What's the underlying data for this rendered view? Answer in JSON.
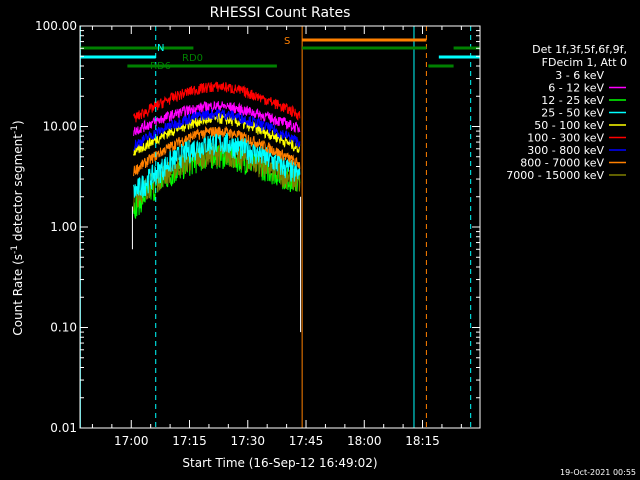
{
  "chart_data": {
    "type": "line",
    "title": "RHESSI Count Rates",
    "xlabel": "Start Time (16-Sep-12 16:49:02)",
    "ylabel_main": "Count Rate (s",
    "ylabel_sup": "-1",
    "ylabel_tail": " detector segment",
    "ylabel_sup2": "-1",
    "ylabel_close": ")",
    "y_scale": "log",
    "ylim": [
      0.01,
      100
    ],
    "xlim_minutes": [
      16.8,
      119.8
    ],
    "y_ticks": [
      {
        "value": 0.01,
        "label": "0.01"
      },
      {
        "value": 0.1,
        "label": "0.10"
      },
      {
        "value": 1,
        "label": "1.00"
      },
      {
        "value": 10,
        "label": "10.00"
      },
      {
        "value": 100,
        "label": "100.00"
      }
    ],
    "x_ticks": [
      {
        "minute": 30,
        "label": "17:00"
      },
      {
        "minute": 45,
        "label": "17:15"
      },
      {
        "minute": 60,
        "label": "17:30"
      },
      {
        "minute": 75,
        "label": "17:45"
      },
      {
        "minute": 90,
        "label": "18:00"
      },
      {
        "minute": 105,
        "label": "18:15"
      }
    ],
    "legend_header": [
      "Det 1f,3f,5f,6f,9f,",
      "FDecim 1, Att 0"
    ],
    "legend_placement": "right",
    "series": [
      {
        "name": "3 - 6 keV",
        "color": "#000000",
        "peak": 5.0,
        "start": 1.4,
        "end": 2.5
      },
      {
        "name": "6 - 12 keV",
        "color": "#ff00ff",
        "peak": 16,
        "start": 9.0,
        "end": 9.5
      },
      {
        "name": "12 - 25 keV",
        "color": "#00ff00",
        "peak": 5.2,
        "start": 1.6,
        "end": 2.7
      },
      {
        "name": "25 - 50 keV",
        "color": "#00ffff",
        "peak": 7.0,
        "start": 2.2,
        "end": 3.3
      },
      {
        "name": "50 - 100 keV",
        "color": "#ffff00",
        "peak": 12,
        "start": 5.5,
        "end": 6.0
      },
      {
        "name": "100 - 300 keV",
        "color": "#ff0000",
        "peak": 25,
        "start": 12,
        "end": 13
      },
      {
        "name": "300 - 800 keV",
        "color": "#0000ff",
        "peak": 13.5,
        "start": 6.5,
        "end": 7.0
      },
      {
        "name": "800 - 7000 keV",
        "color": "#ff8000",
        "peak": 9.0,
        "start": 3.6,
        "end": 4.2
      },
      {
        "name": "7000 - 15000 keV",
        "color": "#808000",
        "peak": 5.5,
        "start": 2.0,
        "end": 2.8
      }
    ],
    "data_start_minute": 30.6,
    "data_end_minute": 73.4,
    "peak_minute": 53.0,
    "state_bars": [
      {
        "label": "N",
        "color": "#00ffff",
        "segments": [
          [
            16.8,
            36.3
          ],
          [
            109.2,
            119.8
          ]
        ],
        "y": 57
      },
      {
        "label": "S",
        "color": "#ff8000",
        "segments": [
          [
            74.0,
            106.0
          ]
        ],
        "y": 40
      },
      {
        "label": "RD0",
        "color": "#008000",
        "segments": [
          [
            16.8,
            46.0
          ],
          [
            74.0,
            106.0
          ],
          [
            113.0,
            119.8
          ]
        ],
        "y": 48
      },
      {
        "label": "RD6",
        "color": "#008000",
        "segments": [
          [
            29.0,
            67.5
          ],
          [
            106.5,
            113.0
          ]
        ],
        "y": 66
      }
    ],
    "marker_lines": [
      {
        "minute": 36.3,
        "color": "#00ffff",
        "dashed": true
      },
      {
        "minute": 74.0,
        "color": "#ff8000",
        "dashed": false
      },
      {
        "minute": 102.8,
        "color": "#00ffff",
        "dashed": false
      },
      {
        "minute": 106.0,
        "color": "#ff8000",
        "dashed": true
      },
      {
        "minute": 117.4,
        "color": "#00ffff",
        "dashed": true
      },
      {
        "minute": 16.9,
        "color": "#00ffff",
        "dashed": false
      }
    ],
    "footer_date": "19-Oct-2021 00:55"
  }
}
